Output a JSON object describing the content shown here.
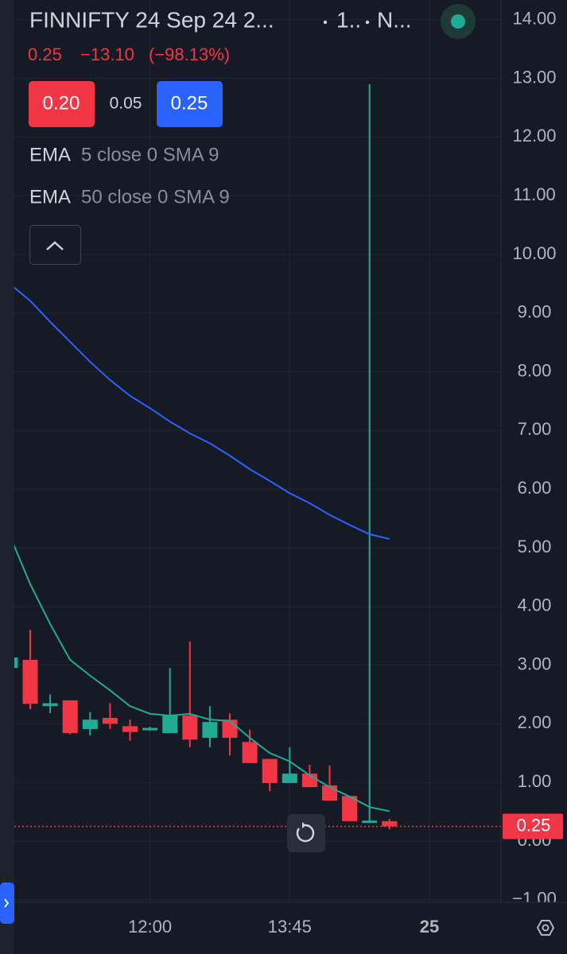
{
  "header": {
    "symbol": "FINNIFTY 24 Sep 24 2...",
    "interval": "1..",
    "exchange": "N...",
    "last": "0.25",
    "change": "−13.10",
    "change_pct": "(−98.13%)",
    "bid": "0.20",
    "spread": "0.05",
    "ask": "0.25"
  },
  "chart_data": {
    "type": "candlestick",
    "categories": [
      null,
      null,
      null,
      null,
      null,
      null,
      null,
      "12:00",
      null,
      null,
      null,
      null,
      null,
      null,
      "13:45",
      null,
      null,
      null,
      null,
      null,
      null,
      "25"
    ],
    "open": [
      2.95,
      3.09,
      2.3,
      2.4,
      1.91,
      2.1,
      1.96,
      1.9,
      1.84,
      2.14,
      1.76,
      2.07,
      1.69,
      1.4,
      0.99,
      1.15,
      0.95,
      0.77,
      0.33,
      0.34,
      null,
      null
    ],
    "high": [
      3.13,
      3.6,
      2.5,
      2.4,
      2.2,
      2.35,
      2.07,
      1.95,
      2.95,
      3.4,
      2.3,
      2.18,
      1.9,
      1.4,
      1.6,
      1.3,
      1.29,
      0.77,
      12.9,
      0.38,
      null,
      null
    ],
    "low": [
      2.95,
      2.25,
      2.18,
      1.82,
      1.8,
      1.91,
      1.71,
      1.88,
      1.84,
      1.6,
      1.6,
      1.46,
      1.33,
      0.85,
      0.99,
      0.92,
      0.69,
      0.34,
      0.33,
      0.2,
      null,
      null
    ],
    "close": [
      3.13,
      2.34,
      2.35,
      1.84,
      2.07,
      2.0,
      1.86,
      1.93,
      2.14,
      1.73,
      2.03,
      1.76,
      1.33,
      0.99,
      1.15,
      0.92,
      0.69,
      0.34,
      0.35,
      0.25,
      null,
      null
    ],
    "up_color": "#22ab94",
    "down_color": "#f23645",
    "lines": [
      {
        "name": "EMA",
        "params": "5 close 0 SMA 9",
        "color": "#22ab94",
        "values": [
          5.19,
          4.38,
          3.7,
          3.09,
          2.82,
          2.57,
          2.3,
          2.17,
          2.14,
          2.17,
          2.07,
          2.05,
          1.76,
          1.5,
          1.36,
          1.12,
          0.92,
          0.76,
          0.58,
          0.51,
          null,
          null
        ]
      },
      {
        "name": "EMA",
        "params": "50 close 0 SMA 9",
        "color": "#2962ff",
        "values": [
          9.49,
          9.21,
          8.85,
          8.51,
          8.17,
          7.86,
          7.59,
          7.38,
          7.15,
          6.95,
          6.78,
          6.57,
          6.34,
          6.14,
          5.93,
          5.76,
          5.56,
          5.39,
          5.23,
          5.15,
          null,
          null
        ]
      }
    ],
    "last_price": {
      "value": 0.25,
      "label": "0.25"
    },
    "last_color": "#f23645",
    "ylim": [
      -1.0,
      14.4
    ],
    "yticks": [
      {
        "value": 14,
        "label": "14.00"
      },
      {
        "value": 13,
        "label": "13.00"
      },
      {
        "value": 12,
        "label": "12.00"
      },
      {
        "value": 11,
        "label": "11.00"
      },
      {
        "value": 10,
        "label": "10.00"
      },
      {
        "value": 9,
        "label": "9.00"
      },
      {
        "value": 8,
        "label": "8.00"
      },
      {
        "value": 7,
        "label": "7.00"
      },
      {
        "value": 6,
        "label": "6.00"
      },
      {
        "value": 5,
        "label": "5.00"
      },
      {
        "value": 4,
        "label": "4.00"
      },
      {
        "value": 3,
        "label": "3.00"
      },
      {
        "value": 2,
        "label": "2.00"
      },
      {
        "value": 1,
        "label": "1.00"
      },
      {
        "value": 0,
        "label": "0.00"
      },
      {
        "value": -1,
        "label": "−1.00"
      }
    ],
    "grid": true
  }
}
